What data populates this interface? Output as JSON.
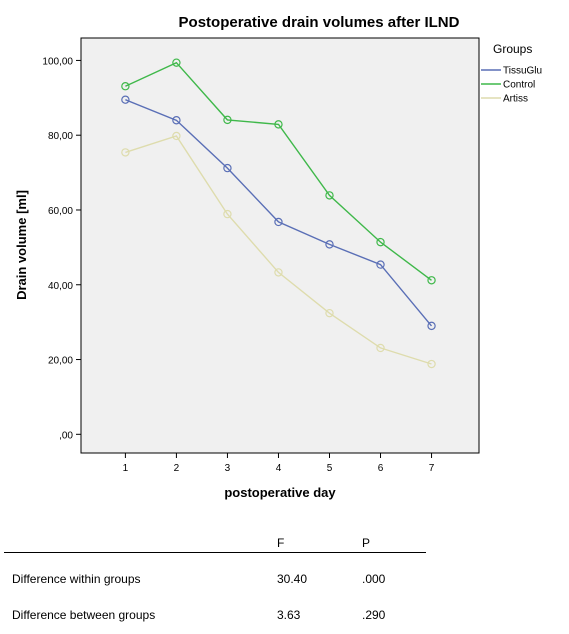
{
  "chart_data": {
    "type": "line",
    "title": "Postoperative drain volumes after ILND",
    "xlabel": "postoperative day",
    "ylabel": "Drain volume [ml]",
    "x": [
      "1",
      "2",
      "3",
      "4",
      "5",
      "6",
      "7"
    ],
    "y_ticks": [
      ",00",
      "20,00",
      "40,00",
      "60,00",
      "80,00",
      "100,00"
    ],
    "ylim": [
      -5,
      106
    ],
    "grid": false,
    "legend_title": "Groups",
    "legend_position": "top-right",
    "series": [
      {
        "name": "TissuGlu",
        "color": "#5a6fb6",
        "values": [
          89.5,
          84.0,
          71.2,
          56.8,
          50.8,
          45.4,
          29.0
        ]
      },
      {
        "name": "Control",
        "color": "#3fb84a",
        "values": [
          93.1,
          99.4,
          84.1,
          82.9,
          63.9,
          51.4,
          41.2
        ]
      },
      {
        "name": "Artiss",
        "color": "#dedcad",
        "values": [
          75.4,
          79.8,
          58.9,
          43.3,
          32.4,
          23.1,
          18.8
        ]
      }
    ]
  },
  "stats_table": {
    "headers": [
      "",
      "F",
      "P"
    ],
    "rows": [
      {
        "label": "Difference within groups",
        "F": "30.40",
        "P": ".000"
      },
      {
        "label": "Difference between groups",
        "F": "3.63",
        "P": ".290"
      }
    ]
  }
}
